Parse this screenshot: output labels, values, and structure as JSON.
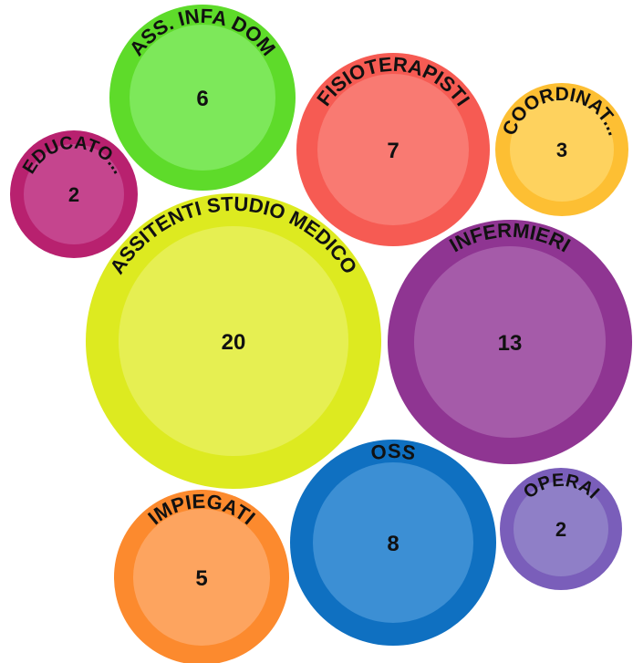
{
  "chart_data": {
    "type": "bubble",
    "series": [
      {
        "label": "ASS. INFA DOM",
        "value": 6,
        "color": "#5edb2a",
        "inner_color": "#7de85a"
      },
      {
        "label": "FISIOTERAPISTI",
        "value": 7,
        "color": "#f65b53",
        "inner_color": "#f97a72"
      },
      {
        "label": "COORDINAT...",
        "value": 3,
        "color": "#fdbf33",
        "inner_color": "#fed25e"
      },
      {
        "label": "EDUCATO...",
        "value": 2,
        "color": "#b8216f",
        "inner_color": "#c5458e"
      },
      {
        "label": "ASSITENTI STUDIO MEDICO",
        "value": 20,
        "color": "#ddea20",
        "inner_color": "#e6ef52"
      },
      {
        "label": "INFERMIERI",
        "value": 13,
        "color": "#8f3592",
        "inner_color": "#a55ba9"
      },
      {
        "label": "OSS",
        "value": 8,
        "color": "#0f70c1",
        "inner_color": "#3c8fd4"
      },
      {
        "label": "OPERAI",
        "value": 2,
        "color": "#7a5eba",
        "inner_color": "#8f7fc7"
      },
      {
        "label": "IMPIEGATI",
        "value": 5,
        "color": "#fc8a2e",
        "inner_color": "#fda45f"
      }
    ]
  }
}
